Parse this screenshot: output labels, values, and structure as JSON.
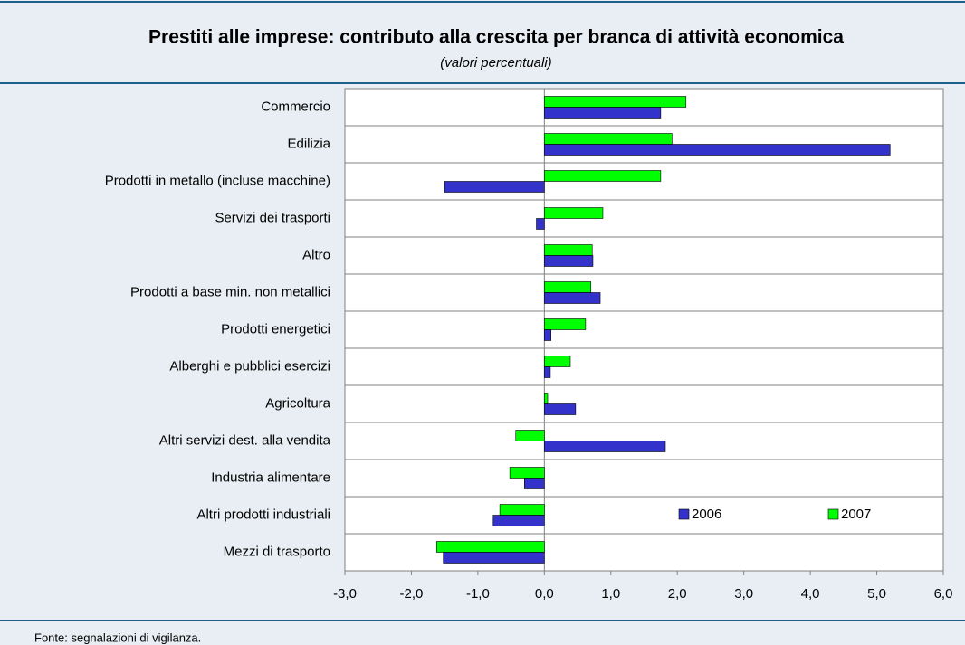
{
  "chart_data": {
    "type": "hbar",
    "title": "Prestiti alle imprese: contributo alla crescita per branca di attività economica",
    "subtitle": "(valori percentuali)",
    "source": "Fonte: segnalazioni di vigilanza.",
    "categories": [
      "Commercio",
      "Edilizia",
      "Prodotti in metallo (incluse macchine)",
      "Servizi dei trasporti",
      "Altro",
      "Prodotti a base min. non metallici",
      "Prodotti energetici",
      "Alberghi e pubblici esercizi",
      "Agricoltura",
      "Altri servizi dest. alla vendita",
      "Industria alimentare",
      "Altri prodotti industriali",
      "Mezzi di trasporto"
    ],
    "series": [
      {
        "name": "2006",
        "color": "#3333cc",
        "values": [
          1.75,
          5.2,
          -1.5,
          -0.12,
          0.73,
          0.84,
          0.1,
          0.09,
          0.47,
          1.82,
          -0.3,
          -0.77,
          -1.52
        ]
      },
      {
        "name": "2007",
        "color": "#00ff00",
        "values": [
          2.13,
          1.92,
          1.75,
          0.88,
          0.72,
          0.7,
          0.62,
          0.39,
          0.05,
          -0.43,
          -0.52,
          -0.67,
          -1.62
        ]
      }
    ],
    "xlim": [
      -3,
      6
    ],
    "xticks": [
      {
        "value": -3,
        "label": "-3,0"
      },
      {
        "value": -2,
        "label": "-2,0"
      },
      {
        "value": -1,
        "label": "-1,0"
      },
      {
        "value": 0,
        "label": "0,0"
      },
      {
        "value": 1,
        "label": "1,0"
      },
      {
        "value": 2,
        "label": "2,0"
      },
      {
        "value": 3,
        "label": "3,0"
      },
      {
        "value": 4,
        "label": "4,0"
      },
      {
        "value": 5,
        "label": "5,0"
      },
      {
        "value": 6,
        "label": "6,0"
      }
    ],
    "legend": "lower-right"
  }
}
